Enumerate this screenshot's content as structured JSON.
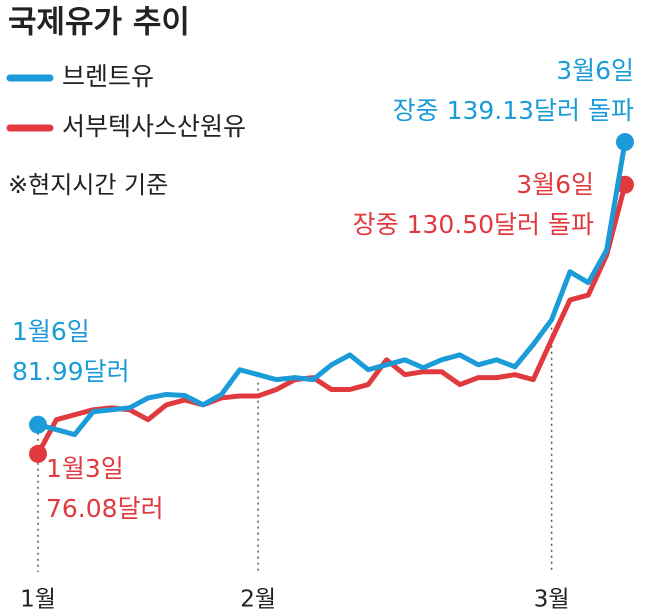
{
  "chart_data": {
    "type": "line",
    "title": "국제유가 추이",
    "note": "※현지시간 기준",
    "categories": [
      "1월",
      null,
      null,
      null,
      null,
      null,
      null,
      null,
      null,
      null,
      null,
      null,
      "2월",
      null,
      null,
      null,
      null,
      null,
      null,
      null,
      null,
      null,
      null,
      null,
      null,
      null,
      null,
      null,
      "3월",
      null,
      null,
      null,
      null
    ],
    "series": [
      {
        "name": "브렌트유",
        "color": "#1b9bd7",
        "values": [
          81.99,
          81.0,
          80.0,
          84.6,
          85.0,
          85.4,
          87.4,
          88.1,
          87.9,
          86.0,
          88.1,
          93.1,
          92.1,
          91.1,
          91.5,
          91.1,
          94.1,
          96.1,
          93.1,
          94.1,
          95.1,
          93.5,
          95.1,
          96.1,
          94.1,
          95.1,
          93.7,
          98.2,
          103.2,
          112.9,
          110.7,
          117.3,
          139.13
        ]
      },
      {
        "name": "서부텍사스산원유",
        "color": "#e0393e",
        "values": [
          76.08,
          83.0,
          84.0,
          85.0,
          85.4,
          85.0,
          83.0,
          86.0,
          87.0,
          86.0,
          87.4,
          87.8,
          87.8,
          89.1,
          91.1,
          91.5,
          89.1,
          89.1,
          90.1,
          95.1,
          92.1,
          92.7,
          92.7,
          90.1,
          91.5,
          91.5,
          92.1,
          91.1,
          99.2,
          107.2,
          108.2,
          116.3,
          130.5
        ]
      }
    ],
    "ylim": [
      70,
      145
    ],
    "annotations": [
      {
        "lines": [
          "1월6일",
          "81.99달러"
        ],
        "color": "#1b9bd7"
      },
      {
        "lines": [
          "1월3일",
          "76.08달러"
        ],
        "color": "#e0393e"
      },
      {
        "lines": [
          "3월6일",
          "장중 139.13달러 돌파"
        ],
        "color": "#1b9bd7"
      },
      {
        "lines": [
          "3월6일",
          "장중 130.50달러 돌파"
        ],
        "color": "#e0393e"
      }
    ]
  }
}
